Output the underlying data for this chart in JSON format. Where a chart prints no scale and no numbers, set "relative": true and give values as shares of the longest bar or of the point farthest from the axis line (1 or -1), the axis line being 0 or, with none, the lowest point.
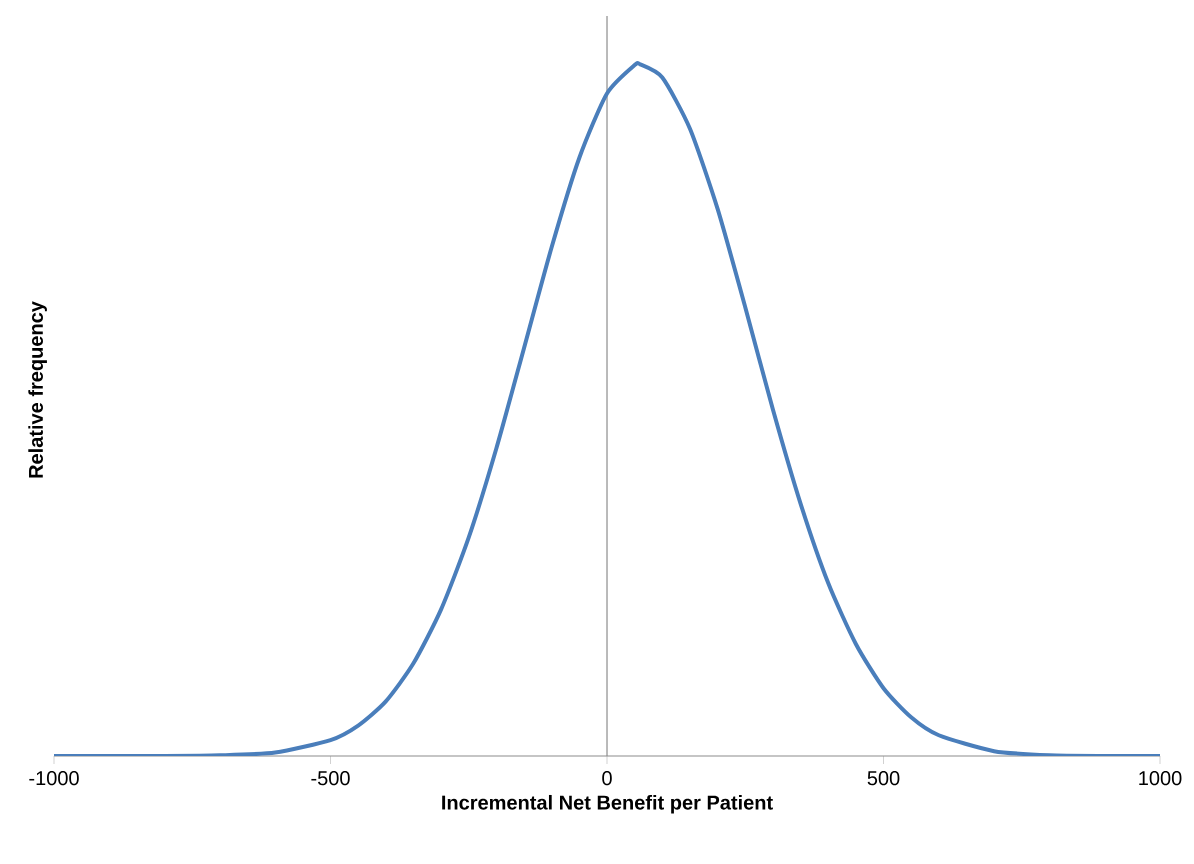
{
  "chart_data": {
    "type": "line",
    "relative": true,
    "xlabel": "Incremental Net Benefit per Patient",
    "ylabel": "Relative frequency",
    "xlim": [
      -1000,
      1000
    ],
    "xticks": [
      -1000,
      -500,
      0,
      500,
      1000
    ],
    "tick_labels": "x",
    "series": [
      {
        "color": "#4a7ebb",
        "x": [
          -1000,
          -900,
          -800,
          -700,
          -600,
          -500,
          -450,
          -400,
          -350,
          -300,
          -250,
          -200,
          -150,
          -100,
          -50,
          0,
          50,
          60,
          100,
          150,
          200,
          250,
          300,
          350,
          400,
          450,
          500,
          550,
          600,
          700,
          800,
          900,
          1000
        ],
        "values": [
          0,
          0,
          0,
          0.001,
          0.005,
          0.023,
          0.044,
          0.079,
          0.134,
          0.212,
          0.316,
          0.445,
          0.59,
          0.736,
          0.865,
          0.958,
          0.999,
          1,
          0.981,
          0.907,
          0.791,
          0.649,
          0.501,
          0.365,
          0.25,
          0.162,
          0.098,
          0.056,
          0.03,
          0.007,
          0.001,
          0,
          0
        ]
      }
    ]
  }
}
